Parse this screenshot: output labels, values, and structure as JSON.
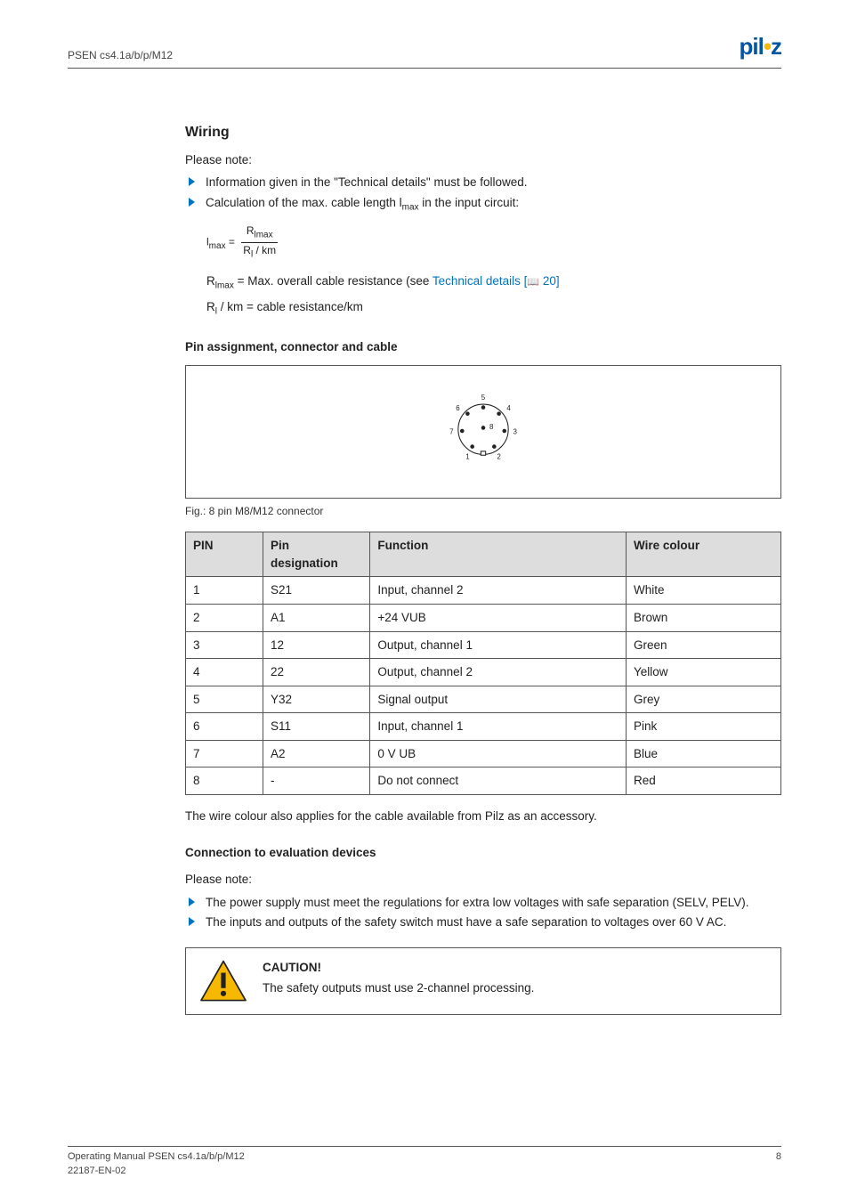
{
  "header": {
    "product": "PSEN cs4.1a/b/p/M12",
    "logo_main": "pil",
    "logo_end": "z"
  },
  "wiring": {
    "title": "Wiring",
    "note": "Please note:",
    "bullets": [
      "Information given in the \"Technical details\" must be followed.",
      "Calculation of the max. cable length l"
    ],
    "bullet2_suffix": " in the input circuit:",
    "bullet2_sub": "max",
    "formula": {
      "lhs_l": "l",
      "lhs_sub": "max",
      "eq": " = ",
      "num_r": "R",
      "num_sub": "lmax",
      "den_r": "R",
      "den_sub": "l",
      "den_tail": " / km"
    },
    "rlmax_r": "R",
    "rlmax_sub": "lmax",
    "rlmax_text": " = Max. overall cable resistance (see ",
    "rlmax_link": "Technical details [",
    "rlmax_page": " 20]",
    "rl_r": "R",
    "rl_sub": "l",
    "rl_text": " / km = cable resistance/km"
  },
  "pin_section": {
    "heading": "Pin assignment, connector and cable",
    "caption": "Fig.: 8 pin M8/M12 connector",
    "pin_labels": {
      "1": "1",
      "2": "2",
      "3": "3",
      "4": "4",
      "5": "5",
      "6": "6",
      "7": "7",
      "8": "8"
    },
    "columns": {
      "pin": "PIN",
      "desig": "Pin designation",
      "func": "Function",
      "colour": "Wire colour"
    },
    "rows": [
      {
        "pin": "1",
        "desig": "S21",
        "func": "Input, channel 2",
        "colour": "White"
      },
      {
        "pin": "2",
        "desig": "A1",
        "func": "+24 VUB",
        "colour": "Brown"
      },
      {
        "pin": "3",
        "desig": "12",
        "func": "Output, channel 1",
        "colour": "Green"
      },
      {
        "pin": "4",
        "desig": "22",
        "func": "Output, channel 2",
        "colour": "Yellow"
      },
      {
        "pin": "5",
        "desig": "Y32",
        "func": "Signal output",
        "colour": "Grey"
      },
      {
        "pin": "6",
        "desig": "S11",
        "func": "Input, channel 1",
        "colour": "Pink"
      },
      {
        "pin": "7",
        "desig": "A2",
        "func": "0 V UB",
        "colour": "Blue"
      },
      {
        "pin": "8",
        "desig": "-",
        "func": "Do not connect",
        "colour": "Red"
      }
    ],
    "after": "The wire colour also applies for the cable available from Pilz as an accessory."
  },
  "conn_section": {
    "heading": "Connection to evaluation devices",
    "note": "Please note:",
    "bullets": [
      "The power supply must meet the regulations for extra low voltages with safe separation (SELV, PELV).",
      "The inputs and outputs of the safety switch must have a safe separation to voltages over 60 V AC."
    ],
    "caution_title": "CAUTION!",
    "caution_text": "The safety outputs must use 2-channel processing."
  },
  "footer": {
    "l1": "Operating Manual PSEN cs4.1a/b/p/M12",
    "l2": "22187-EN-02",
    "page": "8"
  }
}
